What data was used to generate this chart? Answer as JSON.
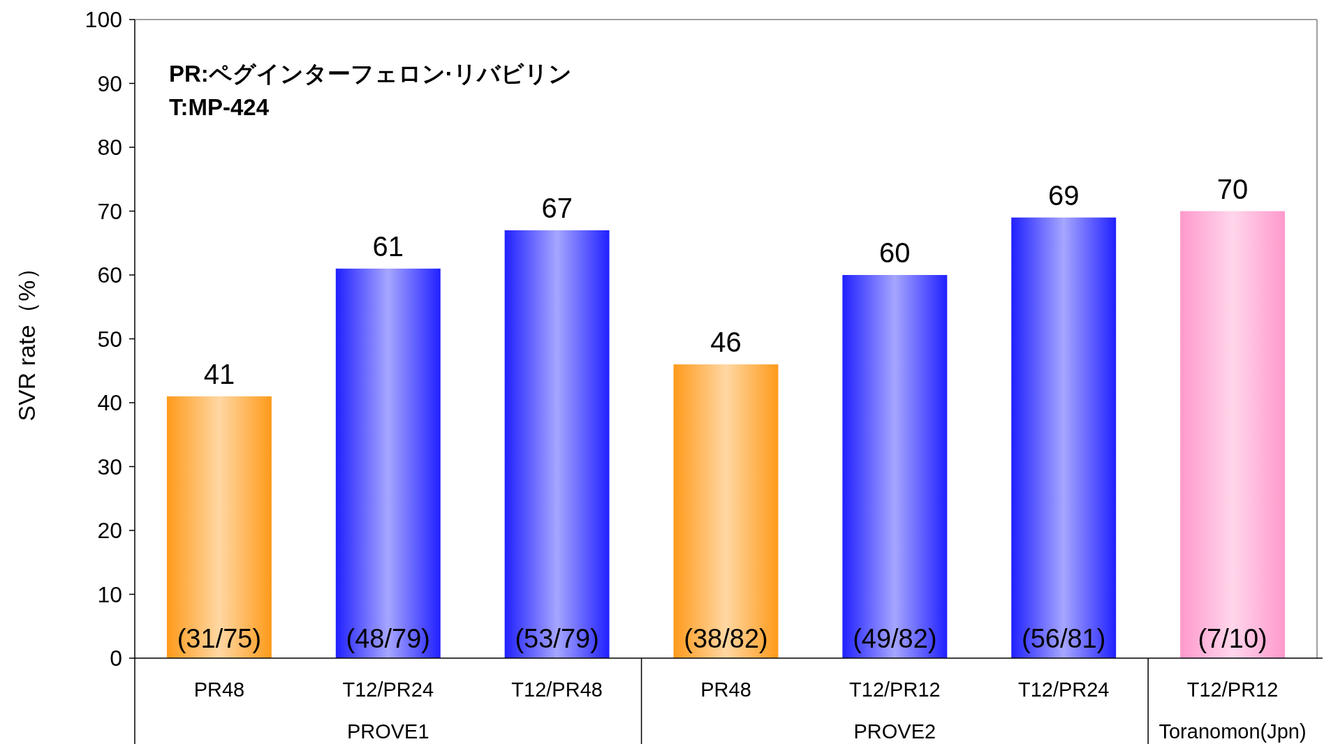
{
  "chart_data": {
    "type": "bar",
    "ylabel": "SVR rate（%）",
    "categories": [
      "PR48",
      "T12/PR24",
      "T12/PR48",
      "PR48",
      "T12/PR12",
      "T12/PR24",
      "T12/PR12"
    ],
    "values": [
      41,
      61,
      67,
      46,
      60,
      69,
      70
    ],
    "colors": [
      "#ff9a1a",
      "#2020ff",
      "#2020ff",
      "#ff9a1a",
      "#2020ff",
      "#2020ff",
      "#ff99cc"
    ],
    "data_labels": true,
    "ylim": [
      0,
      100
    ],
    "yticks": [
      0,
      10,
      20,
      30,
      40,
      50,
      60,
      70,
      80,
      90,
      100
    ],
    "annotations": [
      "PR:ペグインターフェロン·リバビリン",
      "T:MP-424",
      "(31/75)",
      "(48/79)",
      "(53/79)",
      "(38/82)",
      "(49/82)",
      "(56/81)",
      "(7/10)",
      "PROVE1",
      "PROVE2",
      "Toranomon(Jpn)"
    ]
  }
}
